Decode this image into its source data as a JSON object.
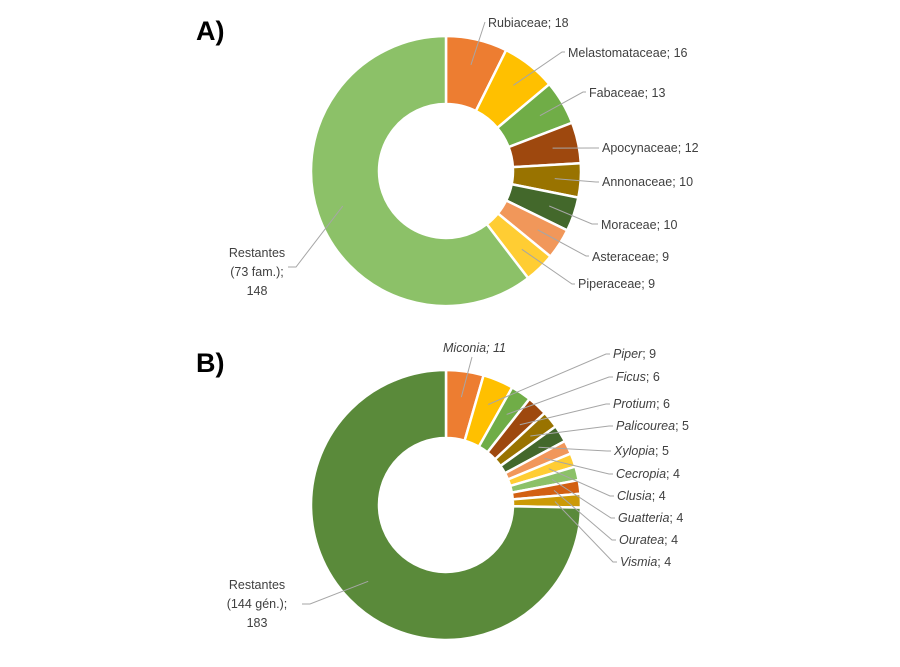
{
  "chart_data": [
    {
      "type": "pie",
      "variant": "donut",
      "panel_label": "A)",
      "title": "",
      "unit_label": "families",
      "start": "top",
      "direction": "clockwise",
      "slices": [
        {
          "name": "Rubiaceae",
          "value": 18,
          "color": "#ED7D31",
          "label": "Rubiaceae; 18",
          "italic": false
        },
        {
          "name": "Melastomataceae",
          "value": 16,
          "color": "#FFC000",
          "label": "Melastomataceae; 16",
          "italic": false
        },
        {
          "name": "Fabaceae",
          "value": 13,
          "color": "#70AD47",
          "label": "Fabaceae; 13",
          "italic": false
        },
        {
          "name": "Apocynaceae",
          "value": 12,
          "color": "#9E480E",
          "label": "Apocynaceae; 12",
          "italic": false
        },
        {
          "name": "Annonaceae",
          "value": 10,
          "color": "#997300",
          "label": "Annonaceae; 10",
          "italic": false
        },
        {
          "name": "Moraceae",
          "value": 10,
          "color": "#43682B",
          "label": "Moraceae; 10",
          "italic": false
        },
        {
          "name": "Asteraceae",
          "value": 9,
          "color": "#F1975A",
          "label": "Asteraceae; 9",
          "italic": false
        },
        {
          "name": "Piperaceae",
          "value": 9,
          "color": "#FFCD33",
          "label": "Piperaceae; 9",
          "italic": false
        },
        {
          "name": "Restantes (73 fam.)",
          "value": 148,
          "color": "#8CC168",
          "label_lines": [
            "Restantes",
            "(73 fam.);",
            "148"
          ],
          "italic": false
        }
      ]
    },
    {
      "type": "pie",
      "variant": "donut",
      "panel_label": "B)",
      "title": "",
      "unit_label": "genera",
      "start": "top",
      "direction": "clockwise",
      "slices": [
        {
          "name": "Miconia",
          "value": 11,
          "color": "#ED7D31",
          "label_name": "Miconia",
          "label_value": "; 11",
          "italic": true
        },
        {
          "name": "Piper",
          "value": 9,
          "color": "#FFC000",
          "label_name": "Piper",
          "label_value": "; 9",
          "italic": true
        },
        {
          "name": "Ficus",
          "value": 6,
          "color": "#70AD47",
          "label_name": "Ficus",
          "label_value": "; 6",
          "italic": true
        },
        {
          "name": "Protium",
          "value": 6,
          "color": "#9E480E",
          "label_name": "Protium",
          "label_value": "; 6",
          "italic": true
        },
        {
          "name": "Palicourea",
          "value": 5,
          "color": "#997300",
          "label_name": "Palicourea",
          "label_value": "; 5",
          "italic": true
        },
        {
          "name": "Xylopia",
          "value": 5,
          "color": "#43682B",
          "label_name": "Xylopia",
          "label_value": "; 5",
          "italic": true
        },
        {
          "name": "Cecropia",
          "value": 4,
          "color": "#F1975A",
          "label_name": "Cecropia",
          "label_value": "; 4",
          "italic": true
        },
        {
          "name": "Clusia",
          "value": 4,
          "color": "#FFCD33",
          "label_name": "Clusia",
          "label_value": "; 4",
          "italic": true
        },
        {
          "name": "Guatteria",
          "value": 4,
          "color": "#8CC168",
          "label_name": "Guatteria",
          "label_value": "; 4",
          "italic": true
        },
        {
          "name": "Ouratea",
          "value": 4,
          "color": "#D26012",
          "label_name": "Ouratea",
          "label_value": "; 4",
          "italic": true
        },
        {
          "name": "Vismia",
          "value": 4,
          "color": "#CC9A06",
          "label_name": "Vismia",
          "label_value": "; 4",
          "italic": true
        },
        {
          "name": "Restantes (144 gén.)",
          "value": 183,
          "color": "#5A8A3A",
          "label_lines": [
            "Restantes",
            "(144 gén.);",
            "183"
          ],
          "italic": false
        }
      ]
    }
  ]
}
